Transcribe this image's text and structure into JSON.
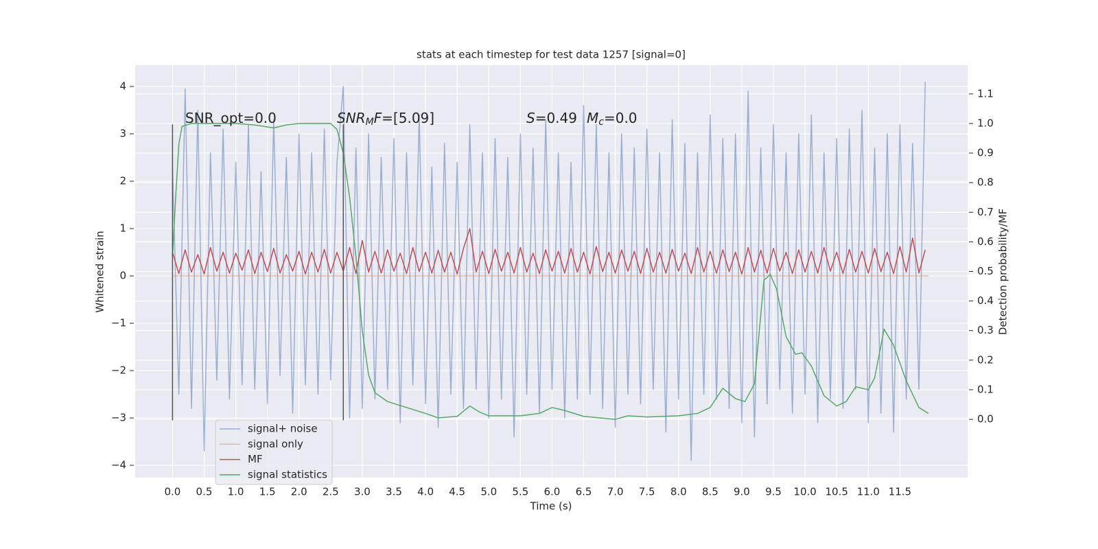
{
  "chart_data": {
    "type": "line",
    "title": "stats at each timestep for test data 1257 [signal=0]",
    "xlabel": "Time (s)",
    "ylabel": "Whitened strain",
    "y2label": "Detection probability/MF",
    "xlim": [
      -0.59,
      12.57
    ],
    "ylim": [
      -4.26,
      4.45
    ],
    "y2lim": [
      -0.197,
      1.197
    ],
    "xticks": [
      {
        "value": 0,
        "label": "0.0"
      },
      {
        "value": 0.5,
        "label": "0.5"
      },
      {
        "value": 1,
        "label": "1.0"
      },
      {
        "value": 1.5,
        "label": "1.5"
      },
      {
        "value": 2,
        "label": "2.0"
      },
      {
        "value": 2.5,
        "label": "2.5"
      },
      {
        "value": 3,
        "label": "3.0"
      },
      {
        "value": 3.5,
        "label": "3.5"
      },
      {
        "value": 4,
        "label": "4.0"
      },
      {
        "value": 4.5,
        "label": "4.5"
      },
      {
        "value": 5,
        "label": "5.0"
      },
      {
        "value": 5.5,
        "label": "5.5"
      },
      {
        "value": 6,
        "label": "6.0"
      },
      {
        "value": 6.5,
        "label": "6.5"
      },
      {
        "value": 7,
        "label": "7.0"
      },
      {
        "value": 7.5,
        "label": "7.5"
      },
      {
        "value": 8,
        "label": "8.0"
      },
      {
        "value": 8.5,
        "label": "8.5"
      },
      {
        "value": 9,
        "label": "9.0"
      },
      {
        "value": 9.5,
        "label": "9.5"
      },
      {
        "value": 10,
        "label": "10.0"
      },
      {
        "value": 10.5,
        "label": "10.5"
      },
      {
        "value": 11,
        "label": "11.0"
      },
      {
        "value": 11.5,
        "label": "11.5"
      }
    ],
    "yticks": [
      {
        "value": -4,
        "label": "−4"
      },
      {
        "value": -3,
        "label": "−3"
      },
      {
        "value": -2,
        "label": "−2"
      },
      {
        "value": -1,
        "label": "−1"
      },
      0,
      1,
      2,
      3,
      4
    ],
    "y2ticks": [
      {
        "value": 0,
        "label": "0.0"
      },
      {
        "value": 0.1,
        "label": "0.1"
      },
      {
        "value": 0.2,
        "label": "0.2"
      },
      {
        "value": 0.3,
        "label": "0.3"
      },
      {
        "value": 0.4,
        "label": "0.4"
      },
      {
        "value": 0.5,
        "label": "0.5"
      },
      {
        "value": 0.6,
        "label": "0.6"
      },
      {
        "value": 0.7,
        "label": "0.7"
      },
      {
        "value": 0.8,
        "label": "0.8"
      },
      {
        "value": 0.9,
        "label": "0.9"
      },
      {
        "value": 1,
        "label": "1.0"
      },
      {
        "value": 1.1,
        "label": "1.1"
      }
    ],
    "grid": true,
    "legend": "lower left",
    "series": [
      {
        "name": "signal+ noise",
        "color": "#4c72b0",
        "alpha": 0.5,
        "x": [
          0,
          0.1,
          0.2,
          0.3,
          0.4,
          0.5,
          0.6,
          0.7,
          0.8,
          0.9,
          1,
          1.1,
          1.2,
          1.3,
          1.4,
          1.5,
          1.6,
          1.7,
          1.8,
          1.9,
          2,
          2.1,
          2.2,
          2.3,
          2.4,
          2.5,
          2.6,
          2.7,
          2.8,
          2.9,
          3,
          3.1,
          3.2,
          3.3,
          3.4,
          3.5,
          3.6,
          3.7,
          3.8,
          3.9,
          4,
          4.1,
          4.2,
          4.3,
          4.4,
          4.5,
          4.6,
          4.7,
          4.8,
          4.9,
          5,
          5.1,
          5.2,
          5.3,
          5.4,
          5.5,
          5.6,
          5.7,
          5.8,
          5.9,
          6,
          6.1,
          6.2,
          6.3,
          6.4,
          6.5,
          6.6,
          6.7,
          6.8,
          6.9,
          7,
          7.1,
          7.2,
          7.3,
          7.4,
          7.5,
          7.6,
          7.7,
          7.8,
          7.9,
          8,
          8.1,
          8.2,
          8.3,
          8.4,
          8.5,
          8.6,
          8.7,
          8.8,
          8.9,
          9,
          9.1,
          9.2,
          9.3,
          9.4,
          9.5,
          9.6,
          9.7,
          9.8,
          9.9,
          10,
          10.1,
          10.2,
          10.3,
          10.4,
          10.5,
          10.6,
          10.7,
          10.8,
          10.9,
          11,
          11.1,
          11.2,
          11.3,
          11.4,
          11.5,
          11.6,
          11.7,
          11.8,
          11.9
        ],
        "values": [
          2.3,
          -2.5,
          3.95,
          -2.8,
          3.5,
          -3.7,
          2.6,
          -2.2,
          3.1,
          -2.6,
          2.4,
          -2.3,
          3.2,
          -2.4,
          2.2,
          -2.7,
          3.3,
          -2.1,
          2.5,
          -2.9,
          3.0,
          -2.3,
          2.6,
          -2.5,
          3.1,
          -2.2,
          2.4,
          4.0,
          -3.0,
          2.7,
          -2.8,
          3.0,
          -2.6,
          2.5,
          -2.4,
          2.9,
          -3.1,
          2.6,
          -2.3,
          3.4,
          -2.7,
          2.3,
          -3.2,
          2.8,
          -2.5,
          2.4,
          -2.8,
          3.2,
          -2.4,
          2.6,
          -3.0,
          2.9,
          -2.6,
          2.5,
          -3.4,
          3.0,
          -2.5,
          2.7,
          -2.9,
          3.3,
          -2.4,
          2.6,
          -3.0,
          2.4,
          -2.6,
          3.6,
          -2.5,
          3.2,
          -2.8,
          2.6,
          -3.2,
          3.0,
          -2.5,
          2.7,
          -2.7,
          3.1,
          -2.4,
          2.6,
          -3.3,
          3.3,
          -2.6,
          2.8,
          -3.9,
          2.6,
          -2.5,
          3.4,
          -2.6,
          2.9,
          -2.8,
          3.0,
          -3.1,
          3.9,
          -3.4,
          2.7,
          -2.7,
          3.2,
          -2.4,
          2.6,
          -2.9,
          3.0,
          -2.5,
          3.4,
          -3.1,
          2.6,
          -2.6,
          2.9,
          -2.8,
          3.1,
          -2.4,
          3.5,
          -3.1,
          2.7,
          -2.9,
          3.0,
          -3.3,
          3.2,
          -2.6,
          2.8,
          -2.4,
          4.1
        ]
      },
      {
        "name": "signal only",
        "color": "#dd8452",
        "alpha": 0.5,
        "x": [
          0,
          11.95
        ],
        "values": [
          0,
          0
        ]
      },
      {
        "name": "MF",
        "color": "#c44e52",
        "alpha": 1,
        "x": [
          0,
          0.1,
          0.2,
          0.3,
          0.4,
          0.5,
          0.6,
          0.7,
          0.8,
          0.9,
          1,
          1.1,
          1.2,
          1.3,
          1.4,
          1.5,
          1.6,
          1.7,
          1.8,
          1.9,
          2,
          2.1,
          2.2,
          2.3,
          2.4,
          2.5,
          2.6,
          2.7,
          2.8,
          2.9,
          3,
          3.1,
          3.2,
          3.3,
          3.4,
          3.5,
          3.6,
          3.7,
          3.8,
          3.9,
          4,
          4.1,
          4.2,
          4.3,
          4.4,
          4.5,
          4.6,
          4.7,
          4.8,
          4.9,
          5,
          5.1,
          5.2,
          5.3,
          5.4,
          5.5,
          5.6,
          5.7,
          5.8,
          5.9,
          6,
          6.1,
          6.2,
          6.3,
          6.4,
          6.5,
          6.6,
          6.7,
          6.8,
          6.9,
          7,
          7.1,
          7.2,
          7.3,
          7.4,
          7.5,
          7.6,
          7.7,
          7.8,
          7.9,
          8,
          8.1,
          8.2,
          8.3,
          8.4,
          8.5,
          8.6,
          8.7,
          8.8,
          8.9,
          9,
          9.1,
          9.2,
          9.3,
          9.4,
          9.5,
          9.6,
          9.7,
          9.8,
          9.9,
          10,
          10.1,
          10.2,
          10.3,
          10.4,
          10.5,
          10.6,
          10.7,
          10.8,
          10.9,
          11,
          11.1,
          11.2,
          11.3,
          11.4,
          11.5,
          11.6,
          11.7,
          11.8,
          11.9
        ],
        "values": [
          0.5,
          0.05,
          0.55,
          0.08,
          0.45,
          0.04,
          0.6,
          0.1,
          0.5,
          0.06,
          0.48,
          0.12,
          0.55,
          0.05,
          0.5,
          0.09,
          0.58,
          0.06,
          0.45,
          0.1,
          0.52,
          0.04,
          0.5,
          0.08,
          0.56,
          0.06,
          0.5,
          0.1,
          0.6,
          0.05,
          0.75,
          0.08,
          0.52,
          0.06,
          0.55,
          0.1,
          0.48,
          0.05,
          0.6,
          0.09,
          0.5,
          0.06,
          0.54,
          0.08,
          0.5,
          0.04,
          0.58,
          1.0,
          0.08,
          0.52,
          0.05,
          0.56,
          0.1,
          0.5,
          0.06,
          0.6,
          0.08,
          0.48,
          0.05,
          0.55,
          0.1,
          0.52,
          0.06,
          0.58,
          0.08,
          0.5,
          0.04,
          0.62,
          0.09,
          0.5,
          0.06,
          0.55,
          0.1,
          0.52,
          0.05,
          0.58,
          0.08,
          0.5,
          0.06,
          0.56,
          0.1,
          0.48,
          0.05,
          0.6,
          0.08,
          0.52,
          0.06,
          0.55,
          0.09,
          0.5,
          0.04,
          0.6,
          0.08,
          0.54,
          0.06,
          0.58,
          0.1,
          0.5,
          0.05,
          0.55,
          0.08,
          0.52,
          0.06,
          0.6,
          0.1,
          0.5,
          0.05,
          0.56,
          0.08,
          0.52,
          0.06,
          0.58,
          0.09,
          0.5,
          0.05,
          0.62,
          0.08,
          0.8,
          0.06,
          0.55
        ]
      },
      {
        "name": "signal statistics",
        "color": "#55a868",
        "alpha": 1,
        "axis": "y2",
        "x": [
          0,
          0.05,
          0.1,
          0.15,
          0.3,
          1,
          1.3,
          1.6,
          1.8,
          2,
          2.5,
          2.6,
          2.7,
          2.8,
          2.9,
          3,
          3.1,
          3.2,
          3.4,
          3.7,
          4,
          4.2,
          4.5,
          4.7,
          4.85,
          5,
          5.5,
          5.8,
          6,
          6.2,
          6.5,
          7,
          7.2,
          7.5,
          8,
          8.3,
          8.5,
          8.7,
          8.9,
          9.05,
          9.2,
          9.35,
          9.45,
          9.55,
          9.7,
          9.85,
          9.95,
          10.1,
          10.3,
          10.5,
          10.65,
          10.8,
          11,
          11.1,
          11.25,
          11.4,
          11.6,
          11.8,
          11.95
        ],
        "values": [
          0.55,
          0.75,
          0.93,
          0.99,
          1.0,
          1.0,
          0.995,
          0.985,
          0.995,
          1.0,
          1.0,
          0.98,
          0.9,
          0.75,
          0.55,
          0.3,
          0.15,
          0.09,
          0.06,
          0.04,
          0.02,
          0.005,
          0.01,
          0.045,
          0.025,
          0.012,
          0.012,
          0.02,
          0.04,
          0.03,
          0.01,
          0.0,
          0.012,
          0.008,
          0.012,
          0.02,
          0.04,
          0.105,
          0.07,
          0.06,
          0.12,
          0.47,
          0.49,
          0.44,
          0.28,
          0.22,
          0.225,
          0.18,
          0.08,
          0.045,
          0.06,
          0.11,
          0.1,
          0.14,
          0.305,
          0.25,
          0.13,
          0.04,
          0.02
        ]
      }
    ],
    "vlines": {
      "x": [
        0,
        2.7
      ],
      "ymin": -3.05,
      "ymax": 3.2,
      "color": "#555555"
    },
    "annotations": [
      {
        "parts": [
          {
            "text": "SNR_opt=0.0"
          }
        ]
      },
      {
        "parts": [
          {
            "text": "SNR",
            "style": "italic"
          },
          {
            "text": "M",
            "style": "italic-sub"
          },
          {
            "text": "F",
            "style": "italic"
          },
          {
            "text": "=[5.09]"
          }
        ]
      },
      {
        "parts": [
          {
            "text": "S",
            "style": "italic"
          },
          {
            "text": "=0.49"
          },
          {
            "text": "M",
            "style": "italic"
          },
          {
            "text": "c",
            "style": "italic-sub"
          },
          {
            "text": "=0.0"
          }
        ]
      }
    ]
  }
}
